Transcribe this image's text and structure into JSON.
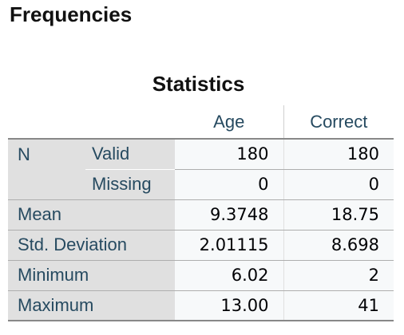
{
  "section_title": "Frequencies",
  "table": {
    "title": "Statistics",
    "columns": [
      "Age",
      "Correct"
    ],
    "n_label": "N",
    "rows": [
      {
        "label": "Valid",
        "age": "180",
        "correct": "180"
      },
      {
        "label": "Missing",
        "age": "0",
        "correct": "0"
      },
      {
        "label": "Mean",
        "age": "9.3748",
        "correct": "18.75"
      },
      {
        "label": "Std. Deviation",
        "age": "2.01115",
        "correct": "8.698"
      },
      {
        "label": "Minimum",
        "age": "6.02",
        "correct": "2"
      },
      {
        "label": "Maximum",
        "age": "13.00",
        "correct": "41"
      }
    ]
  },
  "colors": {
    "label_text": "#264a60",
    "row_header_bg": "#e0e0e0",
    "cell_bg": "#f7f9fa"
  }
}
